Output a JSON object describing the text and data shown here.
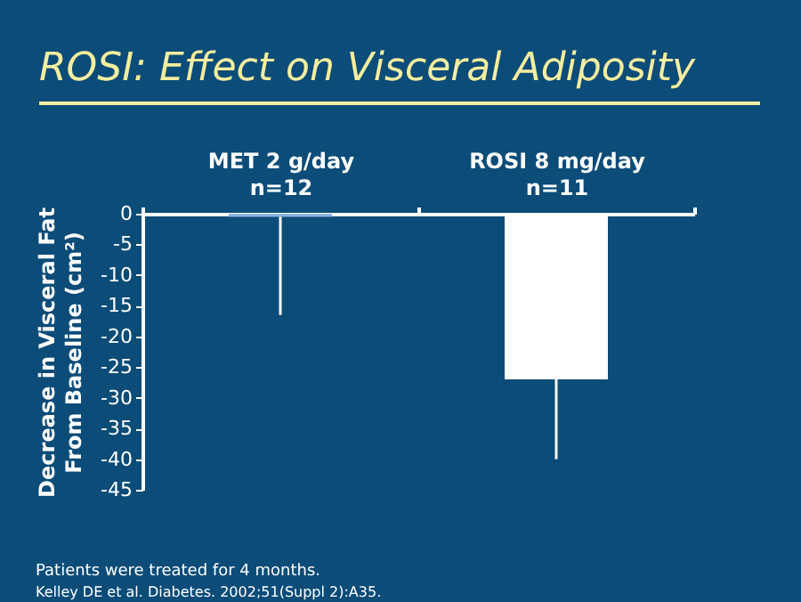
{
  "chart_data": {
    "type": "bar",
    "title": "ROSI: Effect on Visceral Adiposity",
    "categories": [
      "MET 2 g/day\nn=12",
      "ROSI 8 mg/day\nn=11"
    ],
    "values": [
      -0.5,
      -27
    ],
    "colors": [
      "#8ab4e0",
      "#ffffff"
    ],
    "errors": [
      [
        -16.5,
        -0.5
      ],
      [
        -40,
        -27
      ]
    ],
    "ylabel": "Decrease in Visceral Fat\nFrom Baseline (cm²)",
    "ylim": [
      -45,
      0
    ],
    "yticks": [
      -45,
      -40,
      -35,
      -30,
      -25,
      -20,
      -15,
      -10,
      -5,
      0
    ],
    "grid": false,
    "annotations": [
      "Patients were treated for 4 months.",
      "Kelley DE et al. Diabetes. 2002;51(Suppl 2):A35."
    ]
  }
}
